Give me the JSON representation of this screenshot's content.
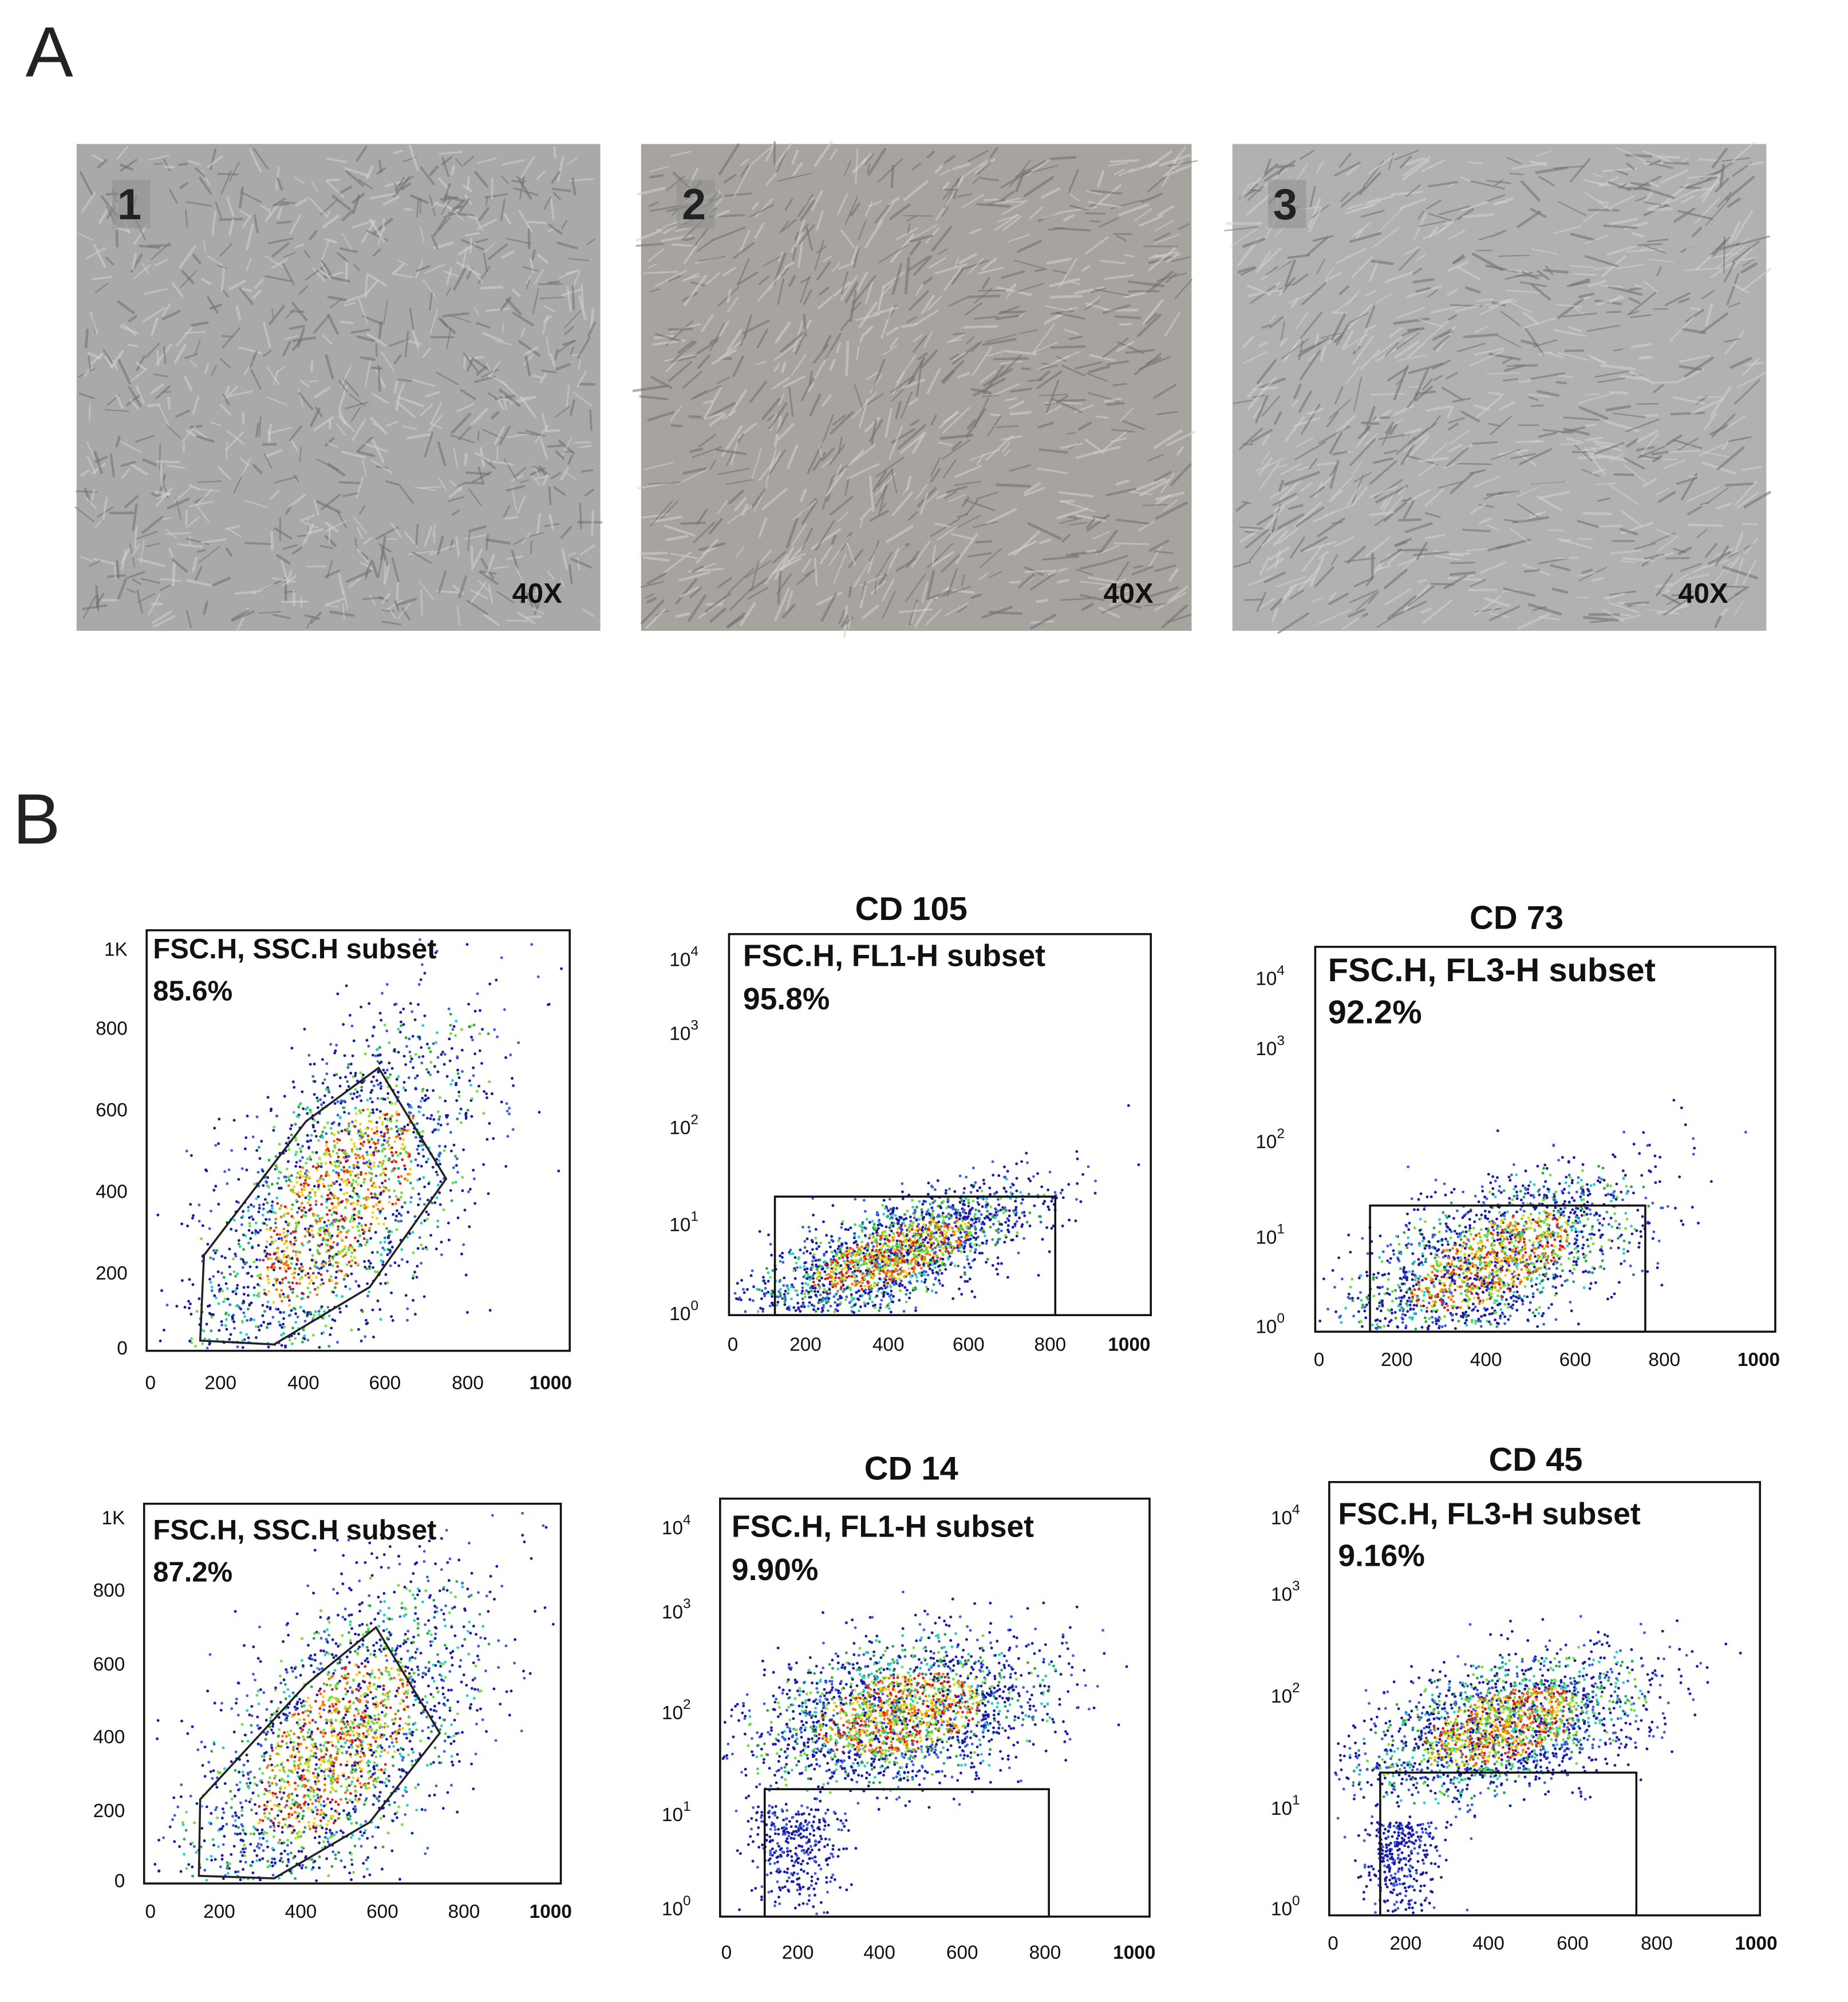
{
  "panel_a": {
    "label": "A",
    "images": [
      {
        "number": "1",
        "magnification": "40X"
      },
      {
        "number": "2",
        "magnification": "40X"
      },
      {
        "number": "3",
        "magnification": "40X"
      }
    ]
  },
  "panel_b": {
    "label": "B",
    "plots": [
      {
        "gate_label": "FSC.H, SSC.H subset",
        "percentage": "85.6%",
        "y_ticks": [
          "1K",
          "800",
          "600",
          "400",
          "200",
          "0"
        ],
        "x_ticks": [
          "0",
          "200",
          "400",
          "600",
          "800",
          "1000"
        ]
      },
      {
        "title": "CD 105",
        "gate_label": "FSC.H, FL1-H subset",
        "percentage": "95.8%",
        "y_ticks": [
          {
            "base": "10",
            "exponent": "4"
          },
          {
            "base": "10",
            "exponent": "3"
          },
          {
            "base": "10",
            "exponent": "2"
          },
          {
            "base": "10",
            "exponent": "1"
          },
          {
            "base": "10",
            "exponent": "0"
          }
        ],
        "x_ticks": [
          "0",
          "200",
          "400",
          "600",
          "800",
          "1000"
        ]
      },
      {
        "title": "CD 73",
        "gate_label": "FSC.H, FL3-H subset",
        "percentage": "92.2%",
        "y_ticks": [
          {
            "base": "10",
            "exponent": "4"
          },
          {
            "base": "10",
            "exponent": "3"
          },
          {
            "base": "10",
            "exponent": "2"
          },
          {
            "base": "10",
            "exponent": "1"
          },
          {
            "base": "10",
            "exponent": "0"
          }
        ],
        "x_ticks": [
          "0",
          "200",
          "400",
          "600",
          "800",
          "1000"
        ]
      },
      {
        "gate_label": "FSC.H, SSC.H subset",
        "percentage": "87.2%",
        "y_ticks": [
          "1K",
          "800",
          "600",
          "400",
          "200",
          "0"
        ],
        "x_ticks": [
          "0",
          "200",
          "400",
          "600",
          "800",
          "1000"
        ]
      },
      {
        "title": "CD 14",
        "gate_label": "FSC.H, FL1-H subset",
        "percentage": "9.90%",
        "y_ticks": [
          {
            "base": "10",
            "exponent": "4"
          },
          {
            "base": "10",
            "exponent": "3"
          },
          {
            "base": "10",
            "exponent": "2"
          },
          {
            "base": "10",
            "exponent": "1"
          },
          {
            "base": "10",
            "exponent": "0"
          }
        ],
        "x_ticks": [
          "0",
          "200",
          "400",
          "600",
          "800",
          "1000"
        ]
      },
      {
        "title": "CD 45",
        "gate_label": "FSC.H, FL3-H subset",
        "percentage": "9.16%",
        "y_ticks": [
          {
            "base": "10",
            "exponent": "4"
          },
          {
            "base": "10",
            "exponent": "3"
          },
          {
            "base": "10",
            "exponent": "2"
          },
          {
            "base": "10",
            "exponent": "1"
          },
          {
            "base": "10",
            "exponent": "0"
          }
        ],
        "x_ticks": [
          "0",
          "200",
          "400",
          "600",
          "800",
          "1000"
        ]
      }
    ]
  }
}
